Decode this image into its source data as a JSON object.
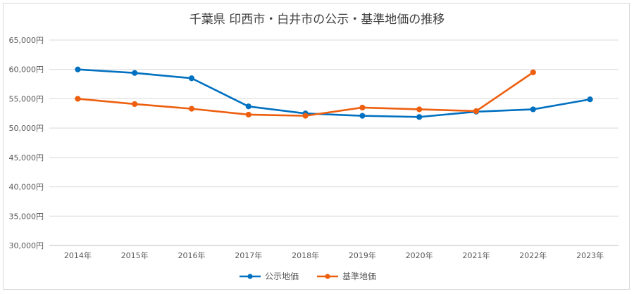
{
  "chart_data": {
    "type": "line",
    "title": "千葉県 印西市・白井市の公示・基準地価の推移",
    "xlabel": "",
    "ylabel": "",
    "categories": [
      "2014年",
      "2015年",
      "2016年",
      "2017年",
      "2018年",
      "2019年",
      "2020年",
      "2021年",
      "2022年",
      "2023年"
    ],
    "ylim": [
      30000,
      65000
    ],
    "yticks": [
      30000,
      35000,
      40000,
      45000,
      50000,
      55000,
      60000,
      65000
    ],
    "ytick_labels": [
      "30,000円",
      "35,000円",
      "40,000円",
      "45,000円",
      "50,000円",
      "55,000円",
      "60,000円",
      "65,000円"
    ],
    "grid": true,
    "legend_position": "bottom",
    "series": [
      {
        "name": "公示地価",
        "color": "#0070c0",
        "values": [
          60000,
          59400,
          58500,
          53700,
          52500,
          52100,
          51900,
          52800,
          53200,
          54900
        ]
      },
      {
        "name": "基準地価",
        "color": "#ed5f0f",
        "values": [
          55000,
          54100,
          53300,
          52300,
          52100,
          53500,
          53200,
          52900,
          59500,
          null
        ]
      }
    ]
  }
}
